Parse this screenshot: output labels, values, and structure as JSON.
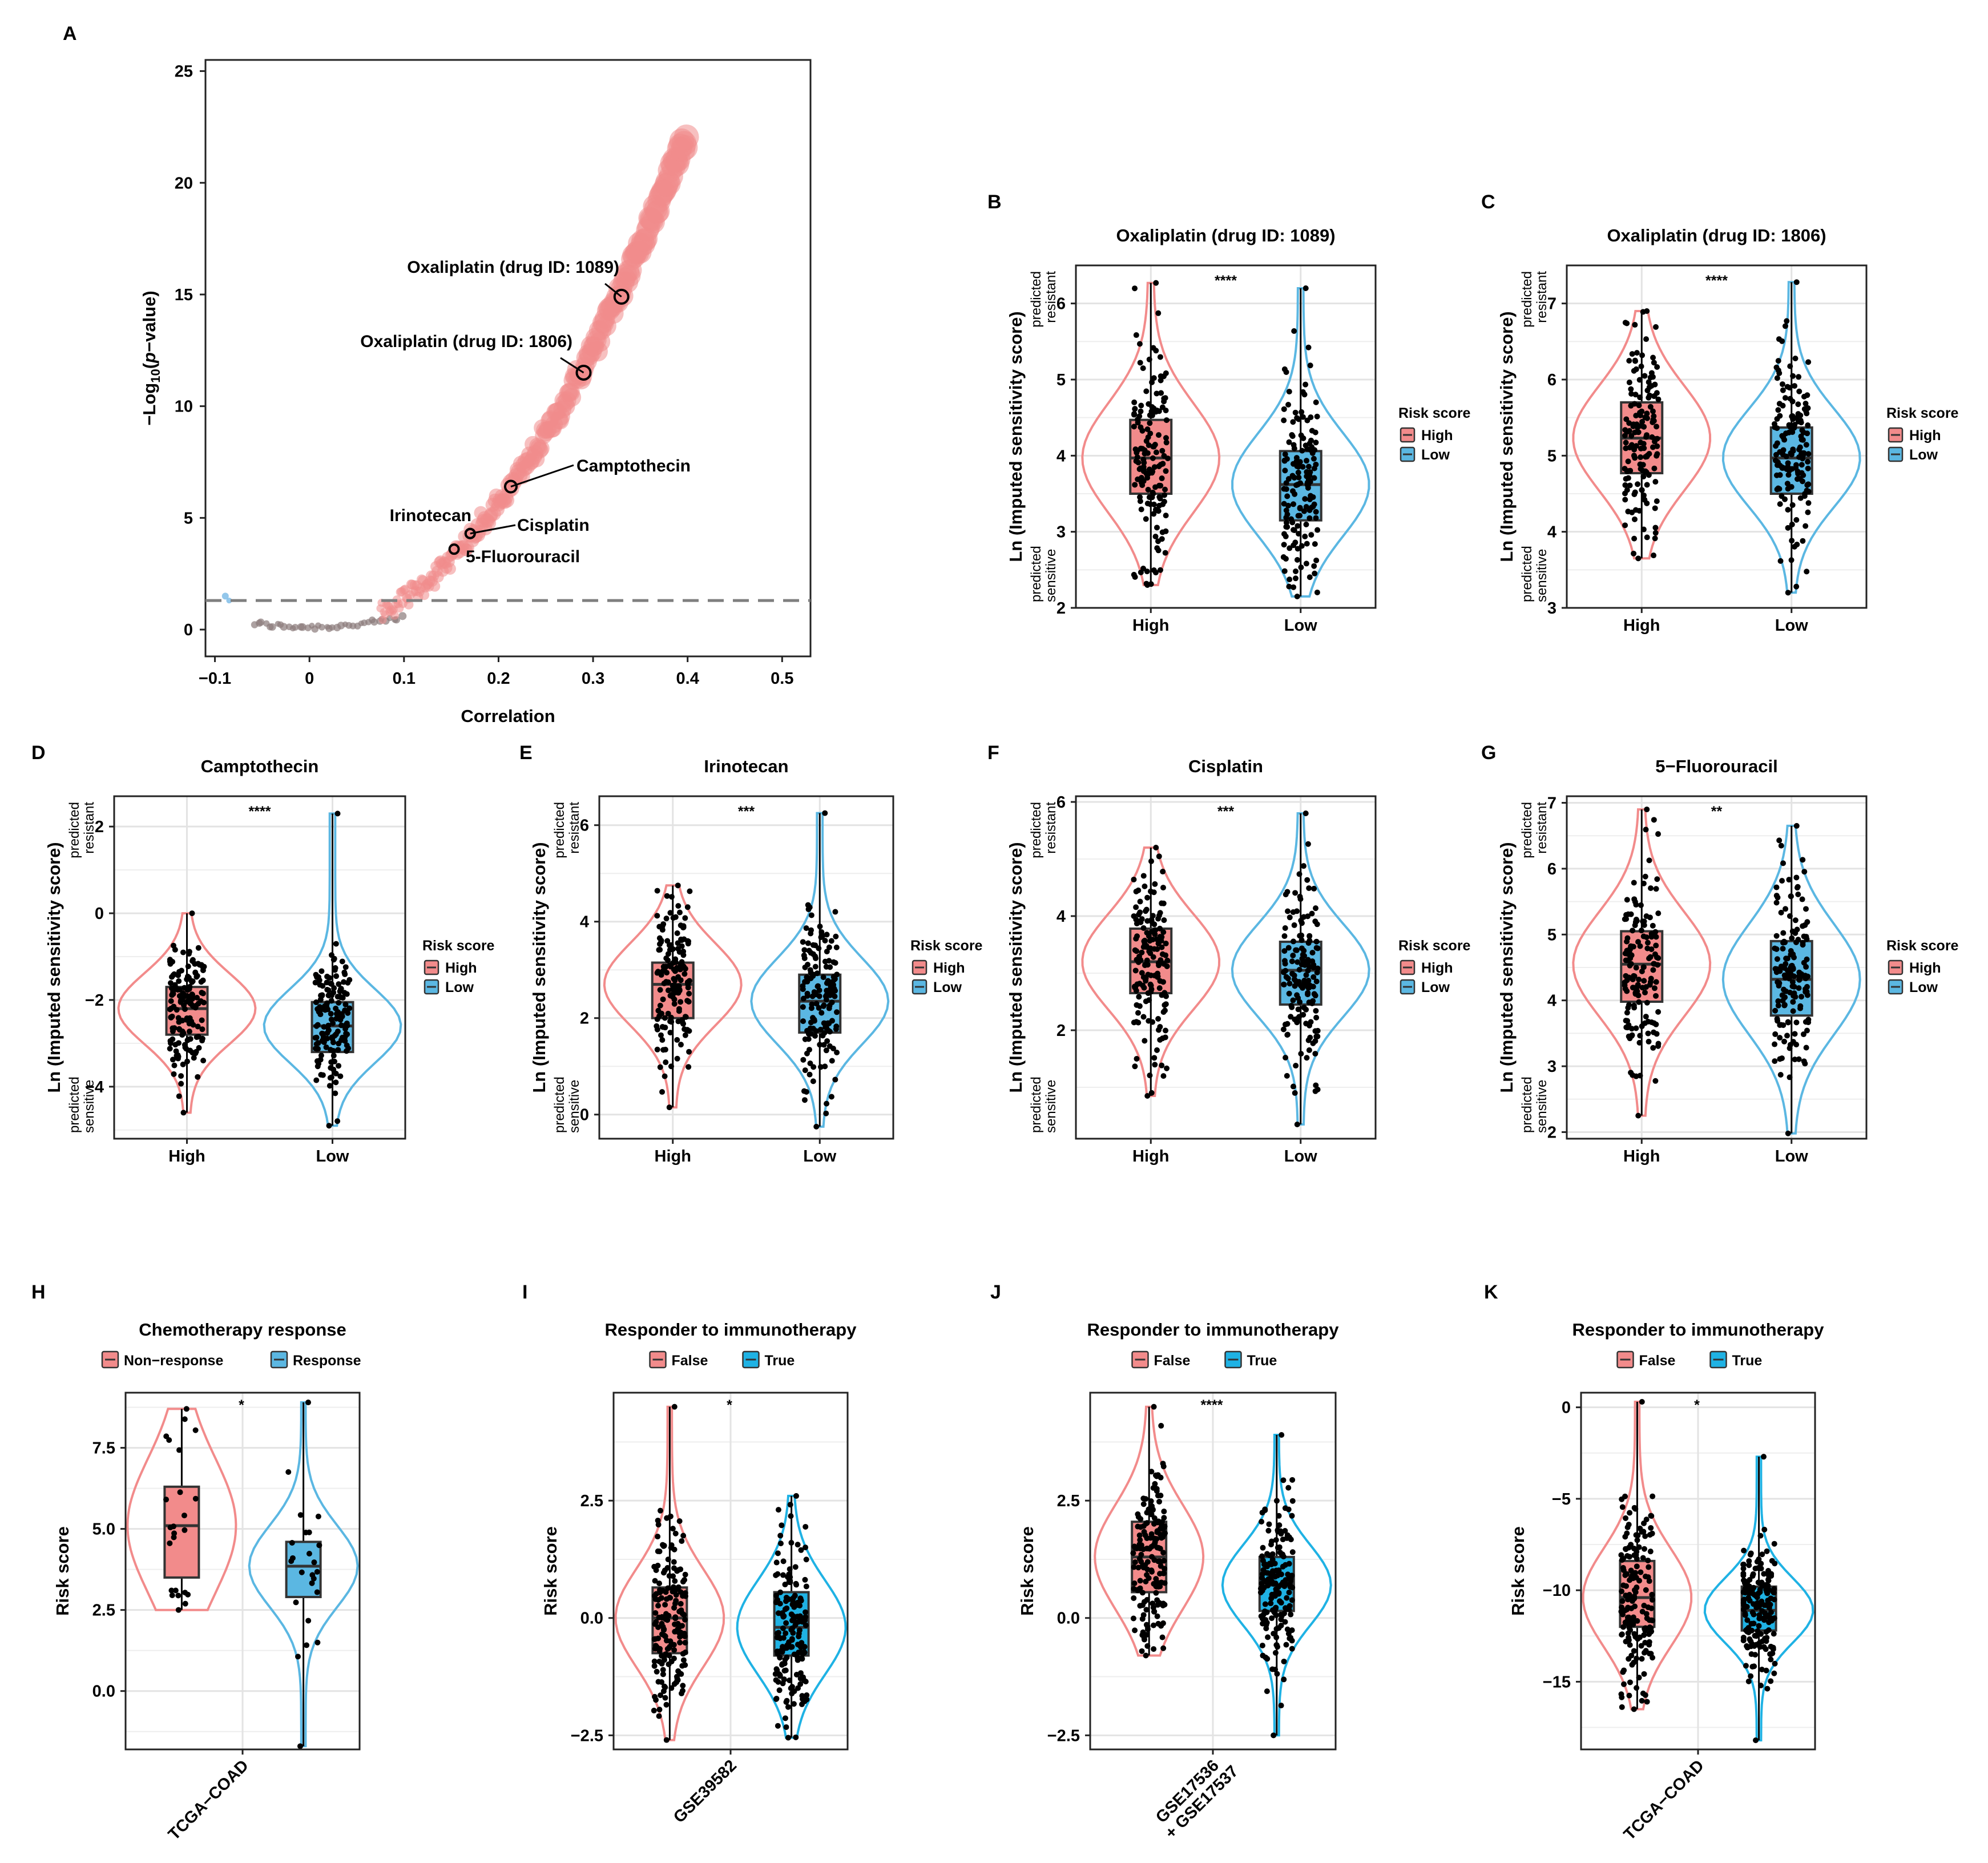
{
  "colors": {
    "high": "#F28B8B",
    "low": "#5BB7E2",
    "true_fill": "#1FB2E4",
    "scatter": "#F08C8C",
    "scatter_neg": "#8A7A7A",
    "scatter_blue": "#78B9E6",
    "point": "#000000",
    "dashed": "#7F7F7F"
  },
  "panelA": {
    "label": "A",
    "title": "",
    "xlabel": "Correlation",
    "ylabel_prefix": "−Log",
    "ylabel_sub": "10",
    "ylabel_p": "p",
    "ylabel_suffix": "−value)",
    "ylabel_open": "(",
    "xticks": [
      "−0.1",
      "0",
      "0.1",
      "0.2",
      "0.3",
      "0.4",
      "0.5"
    ],
    "xtick_values": [
      -0.1,
      0,
      0.1,
      0.2,
      0.3,
      0.4,
      0.5
    ],
    "yticks": [
      "0",
      "5",
      "10",
      "15",
      "20",
      "25"
    ],
    "ytick_values": [
      0,
      5,
      10,
      15,
      20,
      25
    ],
    "threshold": 1.3,
    "annotations": [
      {
        "label": "Oxaliplatin (drug ID: 1089)",
        "x": 0.33,
        "y": 14.9
      },
      {
        "label": "Oxaliplatin (drug ID: 1806)",
        "x": 0.29,
        "y": 11.5
      },
      {
        "label": "Camptothecin",
        "x": 0.213,
        "y": 6.4
      },
      {
        "label": "Cisplatin",
        "x": 0.17,
        "y": 4.3
      },
      {
        "label": "Irinotecan",
        "x": 0.17,
        "y": 4.3
      },
      {
        "label": "5-Fluorouracil",
        "x": 0.153,
        "y": 3.6
      }
    ]
  },
  "chart_data": [
    {
      "type": "scatter",
      "panel": "A",
      "xlabel": "Correlation",
      "ylabel": "−Log10(p−value)",
      "xlim": [
        -0.11,
        0.53
      ],
      "ylim": [
        -1.2,
        25.5
      ],
      "curve": {
        "x_from": 0.0,
        "x_to": 0.4,
        "y": "approx 140*x^2 (steep rise)"
      },
      "threshold": 1.3
    },
    {
      "type": "violin-box",
      "panel": "B",
      "title": "Oxaliplatin (drug ID: 1089)",
      "ylabel": "Ln (Imputed sensitivity score)",
      "categories": [
        "High",
        "Low"
      ],
      "ylim": [
        2,
        6.5
      ],
      "groups": [
        {
          "name": "High",
          "q1": 3.5,
          "median": 3.97,
          "q3": 4.47,
          "whisker_low": 2.3,
          "whisker_high": 6.27
        },
        {
          "name": "Low",
          "q1": 3.15,
          "median": 3.62,
          "q3": 4.06,
          "whisker_low": 2.15,
          "whisker_high": 6.2
        }
      ],
      "significance": "****"
    },
    {
      "type": "violin-box",
      "panel": "C",
      "title": "Oxaliplatin (drug ID: 1806)",
      "ylabel": "Ln (Imputed sensitivity score)",
      "categories": [
        "High",
        "Low"
      ],
      "ylim": [
        3,
        7.5
      ],
      "groups": [
        {
          "name": "High",
          "q1": 4.77,
          "median": 5.23,
          "q3": 5.7,
          "whisker_low": 3.65,
          "whisker_high": 6.9
        },
        {
          "name": "Low",
          "q1": 4.5,
          "median": 4.97,
          "q3": 5.37,
          "whisker_low": 3.2,
          "whisker_high": 7.28
        }
      ],
      "significance": "****"
    },
    {
      "type": "violin-box",
      "panel": "D",
      "title": "Camptothecin",
      "ylabel": "Ln (Imputed sensitivity score)",
      "categories": [
        "High",
        "Low"
      ],
      "ylim": [
        -5.2,
        2.7
      ],
      "groups": [
        {
          "name": "High",
          "q1": -2.8,
          "median": -2.2,
          "q3": -1.7,
          "whisker_low": -4.6,
          "whisker_high": 0
        },
        {
          "name": "Low",
          "q1": -3.2,
          "median": -2.6,
          "q3": -2.05,
          "whisker_low": -4.9,
          "whisker_high": 2.3
        }
      ],
      "significance": "****"
    },
    {
      "type": "violin-box",
      "panel": "E",
      "title": "Irinotecan",
      "ylabel": "Ln (Imputed sensitivity score)",
      "categories": [
        "High",
        "Low"
      ],
      "ylim": [
        -0.5,
        6.6
      ],
      "groups": [
        {
          "name": "High",
          "q1": 2.0,
          "median": 2.7,
          "q3": 3.15,
          "whisker_low": 0.15,
          "whisker_high": 4.75
        },
        {
          "name": "Low",
          "q1": 1.7,
          "median": 2.35,
          "q3": 2.9,
          "whisker_low": -0.25,
          "whisker_high": 6.25
        }
      ],
      "significance": "***"
    },
    {
      "type": "violin-box",
      "panel": "F",
      "title": "Cisplatin",
      "ylabel": "Ln (Imputed sensitivity score)",
      "categories": [
        "High",
        "Low"
      ],
      "ylim": [
        0.1,
        6.1
      ],
      "groups": [
        {
          "name": "High",
          "q1": 2.65,
          "median": 3.2,
          "q3": 3.78,
          "whisker_low": 0.85,
          "whisker_high": 5.2
        },
        {
          "name": "Low",
          "q1": 2.45,
          "median": 3.05,
          "q3": 3.55,
          "whisker_low": 0.35,
          "whisker_high": 5.8
        }
      ],
      "significance": "***"
    },
    {
      "type": "violin-box",
      "panel": "G",
      "title": "5−Fluorouracil",
      "ylabel": "Ln (Imputed sensitivity score)",
      "categories": [
        "High",
        "Low"
      ],
      "ylim": [
        1.9,
        7.1
      ],
      "groups": [
        {
          "name": "High",
          "q1": 3.98,
          "median": 4.55,
          "q3": 5.05,
          "whisker_low": 2.25,
          "whisker_high": 6.9
        },
        {
          "name": "Low",
          "q1": 3.77,
          "median": 4.32,
          "q3": 4.9,
          "whisker_low": 1.98,
          "whisker_high": 6.65
        }
      ],
      "significance": "**"
    },
    {
      "type": "violin-box",
      "panel": "H",
      "title": "Chemotherapy response",
      "ylabel": "Risk score",
      "categories": [
        "TCGA−COAD"
      ],
      "ylim": [
        -1.8,
        9.2
      ],
      "groups": [
        {
          "name": "Non−response",
          "q1": 3.5,
          "median": 5.1,
          "q3": 6.3,
          "whisker_low": 2.5,
          "whisker_high": 8.7
        },
        {
          "name": "Response",
          "q1": 2.9,
          "median": 3.85,
          "q3": 4.6,
          "whisker_low": -1.7,
          "whisker_high": 8.9
        }
      ],
      "significance": "*"
    },
    {
      "type": "violin-box",
      "panel": "I",
      "title": "Responder to immunotherapy",
      "ylabel": "Risk score",
      "categories": [
        "GSE39582"
      ],
      "ylim": [
        -2.8,
        4.8
      ],
      "groups": [
        {
          "name": "False",
          "q1": -0.75,
          "median": 0.0,
          "q3": 0.65,
          "whisker_low": -2.6,
          "whisker_high": 4.5
        },
        {
          "name": "True",
          "q1": -0.8,
          "median": -0.2,
          "q3": 0.55,
          "whisker_low": -2.55,
          "whisker_high": 2.6
        }
      ],
      "significance": "*"
    },
    {
      "type": "violin-box",
      "panel": "J",
      "title": "Responder to immunotherapy",
      "ylabel": "Risk score",
      "categories": [
        "GSE17536 + GSE17537"
      ],
      "ylim": [
        -2.8,
        4.8
      ],
      "groups": [
        {
          "name": "False",
          "q1": 0.55,
          "median": 1.3,
          "q3": 2.05,
          "whisker_low": -0.8,
          "whisker_high": 4.5
        },
        {
          "name": "True",
          "q1": 0.15,
          "median": 0.7,
          "q3": 1.3,
          "whisker_low": -2.5,
          "whisker_high": 3.9
        }
      ],
      "significance": "****"
    },
    {
      "type": "violin-box",
      "panel": "K",
      "title": "Responder to immunotherapy",
      "ylabel": "Risk score",
      "categories": [
        "TCGA−COAD"
      ],
      "ylim": [
        -18.7,
        0.8
      ],
      "groups": [
        {
          "name": "False",
          "q1": -12.0,
          "median": -10.4,
          "q3": -8.4,
          "whisker_low": -16.5,
          "whisker_high": 0.3
        },
        {
          "name": "True",
          "q1": -12.2,
          "median": -11.1,
          "q3": -9.8,
          "whisker_low": -18.2,
          "whisker_high": -2.7
        }
      ],
      "significance": "*"
    }
  ],
  "panels": [
    {
      "id": "B",
      "title": "Oxaliplatin (drug ID: 1089)",
      "ylabel": "Ln (Imputed sensitivity score)",
      "resistant": [
        "predicted",
        "resistant"
      ],
      "sensitive": [
        "predicted",
        "sensitive"
      ],
      "yticks": [
        "2",
        "3",
        "4",
        "5",
        "6"
      ],
      "ytick_values": [
        2,
        3,
        4,
        5,
        6
      ],
      "xticks": [
        "High",
        "Low"
      ],
      "significance": "****",
      "legend": {
        "title": "Risk score",
        "items": [
          "High",
          "Low"
        ]
      }
    },
    {
      "id": "C",
      "title": "Oxaliplatin (drug ID: 1806)",
      "ylabel": "Ln (Imputed sensitivity score)",
      "resistant": [
        "predicted",
        "resistant"
      ],
      "sensitive": [
        "predicted",
        "sensitive"
      ],
      "yticks": [
        "3",
        "4",
        "5",
        "6",
        "7"
      ],
      "ytick_values": [
        3,
        4,
        5,
        6,
        7
      ],
      "xticks": [
        "High",
        "Low"
      ],
      "significance": "****",
      "legend": {
        "title": "Risk score",
        "items": [
          "High",
          "Low"
        ]
      }
    },
    {
      "id": "D",
      "title": "Camptothecin",
      "ylabel": "Ln (Imputed sensitivity score)",
      "resistant": [
        "predicted",
        "resistant"
      ],
      "sensitive": [
        "predicted",
        "sensitive"
      ],
      "yticks": [
        "−4",
        "−2",
        "0",
        "2"
      ],
      "ytick_values": [
        -4,
        -2,
        0,
        2
      ],
      "xticks": [
        "High",
        "Low"
      ],
      "significance": "****",
      "legend": {
        "title": "Risk score",
        "items": [
          "High",
          "Low"
        ]
      }
    },
    {
      "id": "E",
      "title": "Irinotecan",
      "ylabel": "Ln (Imputed sensitivity score)",
      "resistant": [
        "predicted",
        "resistant"
      ],
      "sensitive": [
        "predicted",
        "sensitive"
      ],
      "yticks": [
        "0",
        "2",
        "4",
        "6"
      ],
      "ytick_values": [
        0,
        2,
        4,
        6
      ],
      "xticks": [
        "High",
        "Low"
      ],
      "significance": "***",
      "legend": {
        "title": "Risk score",
        "items": [
          "High",
          "Low"
        ]
      }
    },
    {
      "id": "F",
      "title": "Cisplatin",
      "ylabel": "Ln (Imputed sensitivity score)",
      "resistant": [
        "predicted",
        "resistant"
      ],
      "sensitive": [
        "predicted",
        "sensitive"
      ],
      "yticks": [
        "2",
        "4",
        "6"
      ],
      "ytick_values": [
        2,
        4,
        6
      ],
      "xticks": [
        "High",
        "Low"
      ],
      "significance": "***",
      "legend": {
        "title": "Risk score",
        "items": [
          "High",
          "Low"
        ]
      }
    },
    {
      "id": "G",
      "title": "5−Fluorouracil",
      "ylabel": "Ln (Imputed sensitivity score)",
      "resistant": [
        "predicted",
        "resistant"
      ],
      "sensitive": [
        "predicted",
        "sensitive"
      ],
      "yticks": [
        "2",
        "3",
        "4",
        "5",
        "6",
        "7"
      ],
      "ytick_values": [
        2,
        3,
        4,
        5,
        6,
        7
      ],
      "xticks": [
        "High",
        "Low"
      ],
      "significance": "**",
      "legend": {
        "title": "Risk score",
        "items": [
          "High",
          "Low"
        ]
      }
    },
    {
      "id": "H",
      "title": "Chemotherapy response",
      "ylabel": "Risk score",
      "yticks": [
        "0.0",
        "2.5",
        "5.0",
        "7.5"
      ],
      "ytick_values": [
        0,
        2.5,
        5,
        7.5
      ],
      "xticks": [
        "TCGA−COAD"
      ],
      "significance": "*",
      "legend": {
        "title": "Chemotherapy response",
        "items": [
          "Non−response",
          "Response"
        ]
      }
    },
    {
      "id": "I",
      "title": "Responder to immunotherapy",
      "ylabel": "Risk score",
      "yticks": [
        "−2.5",
        "0.0",
        "2.5"
      ],
      "ytick_values": [
        -2.5,
        0,
        2.5
      ],
      "xticks": [
        "GSE39582"
      ],
      "significance": "*",
      "legend": {
        "title": "Responder to immunotherapy",
        "items": [
          "False",
          "True"
        ]
      }
    },
    {
      "id": "J",
      "title": "Responder to immunotherapy",
      "ylabel": "Risk score",
      "yticks": [
        "−2.5",
        "0.0",
        "2.5"
      ],
      "ytick_values": [
        -2.5,
        0,
        2.5
      ],
      "xticks": [
        "GSE17536",
        "+ GSE17537"
      ],
      "significance": "****",
      "legend": {
        "title": "Responder to immunotherapy",
        "items": [
          "False",
          "True"
        ]
      }
    },
    {
      "id": "K",
      "title": "Responder to immunotherapy",
      "ylabel": "Risk score",
      "yticks": [
        "−15",
        "−10",
        "−5",
        "0"
      ],
      "ytick_values": [
        -15,
        -10,
        -5,
        0
      ],
      "xticks": [
        "TCGA−COAD"
      ],
      "significance": "*",
      "legend": {
        "title": "Responder to immunotherapy",
        "items": [
          "False",
          "True"
        ]
      }
    }
  ]
}
